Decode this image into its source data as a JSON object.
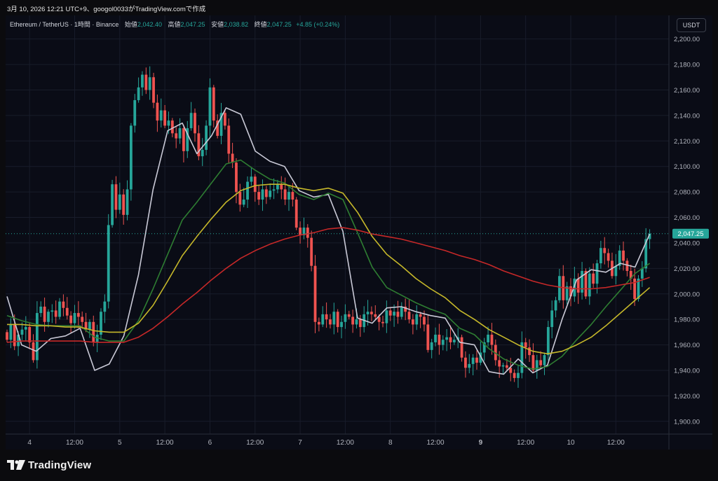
{
  "caption": "3月 10, 2026 12:21 UTC+9、googol0033がTradingView.comで作成",
  "legend": {
    "symbol": "Ethereum / TetherUS · 1時間 · Binance",
    "open_label": "始値",
    "open": "2,042.40",
    "high_label": "高値",
    "high": "2,047.25",
    "low_label": "安値",
    "low": "2,038.82",
    "close_label": "終値",
    "close": "2,047.25",
    "change": "+4.85 (+0.24%)"
  },
  "currency_button": "USDT",
  "brand": "TradingView",
  "icons": {
    "logo": "tradingview-logo-icon"
  },
  "colors": {
    "up": "#26a69a",
    "down": "#ef5350",
    "background": "#0a0c16",
    "ma_fast": "#c9c9d6",
    "ma_mid": "#2e7d32",
    "ma_yellow": "#c6b82a",
    "ma_slow": "#c62828"
  },
  "chart_data": {
    "type": "candlestick",
    "title": "Ethereum / TetherUS · 1時間 · Binance",
    "y_ticks": [
      "2,200.00",
      "2,180.00",
      "2,160.00",
      "2,140.00",
      "2,120.00",
      "2,100.00",
      "2,080.00",
      "2,060.00",
      "2,040.00",
      "2,020.00",
      "2,000.00",
      "1,980.00",
      "1,960.00",
      "1,940.00",
      "1,920.00",
      "1,900.00"
    ],
    "y_tick_values": [
      2200,
      2180,
      2160,
      2140,
      2120,
      2100,
      2080,
      2060,
      2040,
      2020,
      2000,
      1980,
      1960,
      1940,
      1920,
      1900
    ],
    "ylim": [
      1890,
      2213
    ],
    "x_ticks": [
      {
        "label": "4",
        "bar": 6,
        "bold": false
      },
      {
        "label": "12:00",
        "bar": 18,
        "bold": false
      },
      {
        "label": "5",
        "bar": 30,
        "bold": false
      },
      {
        "label": "12:00",
        "bar": 42,
        "bold": false
      },
      {
        "label": "6",
        "bar": 54,
        "bold": false
      },
      {
        "label": "12:00",
        "bar": 66,
        "bold": false
      },
      {
        "label": "7",
        "bar": 78,
        "bold": false
      },
      {
        "label": "12:00",
        "bar": 90,
        "bold": false
      },
      {
        "label": "8",
        "bar": 102,
        "bold": false
      },
      {
        "label": "12:00",
        "bar": 114,
        "bold": false
      },
      {
        "label": "9",
        "bar": 126,
        "bold": true
      },
      {
        "label": "12:00",
        "bar": 138,
        "bold": false
      },
      {
        "label": "10",
        "bar": 150,
        "bold": false
      },
      {
        "label": "12:00",
        "bar": 162,
        "bold": false
      }
    ],
    "last_price": 2047.25,
    "last_price_label": "2,047.25",
    "series": [
      {
        "name": "close",
        "values": [
          1964,
          1976,
          1959,
          1968,
          1972,
          1974,
          1962,
          1948,
          1985,
          1990,
          1978,
          1986,
          1987,
          1982,
          1994,
          1989,
          1983,
          1977,
          1985,
          1982,
          1978,
          1972,
          1978,
          1962,
          1968,
          1986,
          1994,
          2054,
          2086,
          2066,
          2078,
          2062,
          2082,
          2132,
          2152,
          2162,
          2172,
          2160,
          2170,
          2150,
          2136,
          2144,
          2132,
          2136,
          2126,
          2122,
          2130,
          2112,
          2130,
          2142,
          2126,
          2108,
          2113,
          2132,
          2162,
          2136,
          2124,
          2142,
          2132,
          2110,
          2103,
          2080,
          2070,
          2074,
          2088,
          2092,
          2080,
          2074,
          2082,
          2076,
          2081,
          2082,
          2086,
          2082,
          2074,
          2080,
          2074,
          2052,
          2046,
          2052,
          2044,
          2022,
          1978,
          1976,
          1984,
          1980,
          1976,
          1986,
          1974,
          1978,
          1984,
          1982,
          1976,
          1980,
          1974,
          1984,
          1986,
          1984,
          1982,
          1978,
          1977,
          1987,
          1983,
          1986,
          1982,
          1990,
          1986,
          1980,
          1976,
          1984,
          1982,
          1976,
          1956,
          1962,
          1968,
          1960,
          1964,
          1966,
          1962,
          1964,
          1966,
          1950,
          1942,
          1945,
          1950,
          1946,
          1954,
          1962,
          1968,
          1960,
          1948,
          1943,
          1944,
          1942,
          1938,
          1934,
          1938,
          1962,
          1958,
          1952,
          1940,
          1948,
          1944,
          1952,
          1974,
          1987,
          1995,
          2014,
          1995,
          2006,
          1998,
          2012,
          2001,
          2018,
          1998,
          2016,
          2008,
          2024,
          2036,
          2032,
          2026,
          2014,
          2022,
          2034,
          2026,
          2018,
          2012,
          1996,
          2012,
          2020,
          2043,
          2047.25
        ]
      },
      {
        "name": "MA-fast",
        "values": [
          1998,
          1960,
          1955,
          1965,
          1967,
          1973,
          1940,
          1945,
          1967,
          2015,
          2082,
          2128,
          2134,
          2110,
          2124,
          2146,
          2141,
          2112,
          2104,
          2100,
          2081,
          2076,
          2078,
          2049,
          1981,
          1977,
          1989,
          1990,
          1986,
          1983,
          1981,
          1962,
          1960,
          1939,
          1937,
          1949,
          1938,
          1944,
          1980,
          2011,
          2019,
          2017,
          2024,
          2021,
          2047
        ]
      },
      {
        "name": "MA-mid",
        "values": [
          1983,
          1979,
          1976,
          1975,
          1975,
          1975,
          1966,
          1963,
          1963,
          1979,
          2004,
          2031,
          2058,
          2072,
          2087,
          2102,
          2105,
          2097,
          2090,
          2087,
          2078,
          2074,
          2079,
          2074,
          2048,
          2021,
          2005,
          1999,
          1993,
          1988,
          1984,
          1973,
          1968,
          1957,
          1949,
          1944,
          1941,
          1943,
          1951,
          1964,
          1976,
          1990,
          2003,
          2016,
          2024
        ]
      },
      {
        "name": "MA-yellow",
        "values": [
          1976,
          1976,
          1975,
          1975,
          1974,
          1974,
          1971,
          1970,
          1970,
          1977,
          1991,
          2010,
          2030,
          2045,
          2059,
          2072,
          2081,
          2085,
          2086,
          2086,
          2083,
          2081,
          2083,
          2079,
          2064,
          2045,
          2031,
          2022,
          2012,
          2004,
          1997,
          1987,
          1980,
          1972,
          1966,
          1960,
          1955,
          1953,
          1955,
          1960,
          1966,
          1975,
          1985,
          1995,
          2005
        ]
      },
      {
        "name": "MA-slow",
        "values": [
          1962,
          1963,
          1963,
          1963,
          1963,
          1963,
          1962,
          1962,
          1962,
          1966,
          1973,
          1982,
          1992,
          2001,
          2011,
          2020,
          2028,
          2034,
          2039,
          2043,
          2046,
          2048,
          2051,
          2052,
          2050,
          2047,
          2045,
          2043,
          2040,
          2037,
          2034,
          2030,
          2027,
          2023,
          2018,
          2014,
          2010,
          2007,
          2005,
          2004,
          2004,
          2005,
          2007,
          2009,
          2013
        ]
      }
    ]
  }
}
